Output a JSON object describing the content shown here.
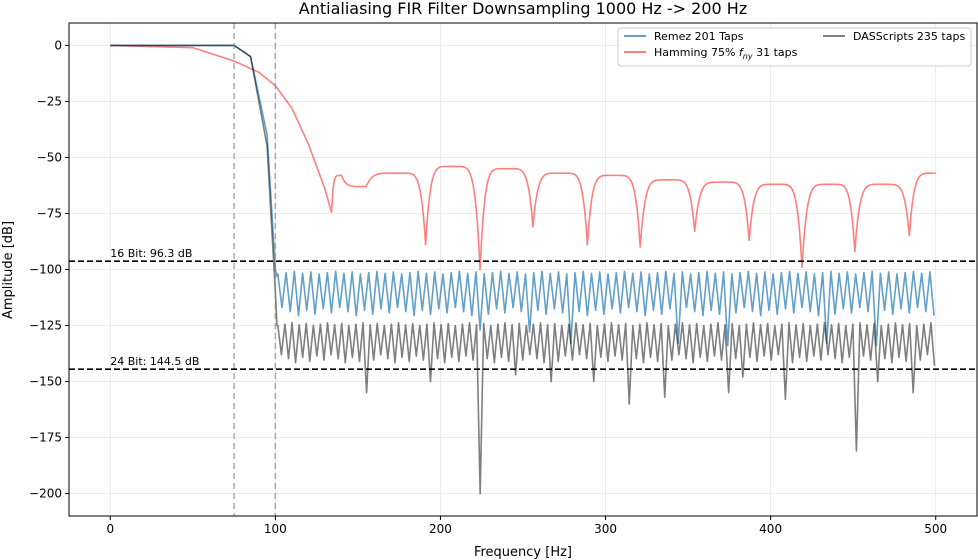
{
  "chart_data": {
    "type": "line",
    "title": "Antialiasing FIR Filter Downsampling 1000 Hz -> 200 Hz",
    "xlabel": "Frequency [Hz]",
    "ylabel": "Amplitude [dB]",
    "xlim": [
      -25,
      525
    ],
    "ylim": [
      -210,
      10
    ],
    "x_ticks": [
      0,
      100,
      200,
      300,
      400,
      500
    ],
    "y_ticks": [
      0,
      -25,
      -50,
      -75,
      -100,
      -125,
      -150,
      -175,
      -200
    ],
    "x_tick_labels": [
      "0",
      "100",
      "200",
      "300",
      "400",
      "500"
    ],
    "y_tick_labels": [
      "0",
      "−25",
      "−50",
      "−75",
      "−100",
      "−125",
      "−150",
      "−175",
      "−200"
    ],
    "grid": true,
    "legend_position": "top-right",
    "series": [
      {
        "name": "Remez 201 Taps",
        "color": "#1f77b4",
        "opacity": 0.7,
        "passband_end_hz": 75,
        "stopband_start_hz": 100,
        "stopband_ceiling_db": -102,
        "stopband_floor_db": -117,
        "ripple_period_hz": 5,
        "key_points": [
          [
            0,
            0
          ],
          [
            75,
            0
          ],
          [
            85,
            -5
          ],
          [
            95,
            -40
          ],
          [
            100,
            -100
          ],
          [
            101,
            -103
          ]
        ],
        "deep_nulls": [
          [
            225,
            -127
          ],
          [
            255,
            -128
          ],
          [
            280,
            -133
          ],
          [
            345,
            -133
          ],
          [
            375,
            -134
          ],
          [
            435,
            -133
          ],
          [
            465,
            -134
          ]
        ]
      },
      {
        "name": "Hamming 75% f_ny 31 taps",
        "label_main": "Hamming 75% ",
        "label_sym": "f",
        "label_sub": "ny",
        "label_tail": " 31 taps",
        "color": "#ff0000",
        "opacity": 0.5,
        "key_points": [
          [
            0,
            0
          ],
          [
            50,
            -1
          ],
          [
            75,
            -7
          ],
          [
            90,
            -12
          ],
          [
            100,
            -18
          ],
          [
            110,
            -28
          ],
          [
            120,
            -44
          ],
          [
            130,
            -64
          ],
          [
            134,
            -74.5
          ]
        ],
        "nulls": [
          [
            134,
            -74.5
          ],
          [
            191,
            -89
          ],
          [
            224,
            -100
          ],
          [
            256,
            -81
          ],
          [
            289,
            -89
          ],
          [
            321,
            -90
          ],
          [
            354,
            -83
          ],
          [
            387,
            -87
          ],
          [
            419,
            -99
          ],
          [
            451,
            -92
          ],
          [
            484,
            -85
          ]
        ],
        "peaks": [
          [
            140,
            -58
          ],
          [
            155,
            -63
          ],
          [
            175,
            -57
          ],
          [
            207,
            -54
          ],
          [
            240,
            -55
          ],
          [
            273,
            -57
          ],
          [
            305,
            -58
          ],
          [
            338,
            -60
          ],
          [
            371,
            -61
          ],
          [
            403,
            -62
          ],
          [
            436,
            -62
          ],
          [
            468,
            -62
          ],
          [
            500,
            -57
          ]
        ]
      },
      {
        "name": "DASScripts 235 taps",
        "color": "#000000",
        "opacity": 0.5,
        "passband_end_hz": 75,
        "stopband_start_hz": 100,
        "stopband_ceiling_db": -125,
        "stopband_floor_db": -138,
        "ripple_period_hz": 4.3,
        "key_points": [
          [
            0,
            0
          ],
          [
            75,
            0
          ],
          [
            85,
            -5
          ],
          [
            95,
            -45
          ],
          [
            100,
            -110
          ],
          [
            101,
            -125
          ]
        ],
        "deep_nulls": [
          [
            155,
            -155
          ],
          [
            196,
            -150
          ],
          [
            223,
            -200
          ],
          [
            244,
            -147
          ],
          [
            265,
            -150
          ],
          [
            295,
            -150
          ],
          [
            315,
            -160
          ],
          [
            336,
            -157
          ],
          [
            373,
            -155
          ],
          [
            385,
            -148
          ],
          [
            410,
            -158
          ],
          [
            452,
            -181
          ],
          [
            466,
            -150
          ],
          [
            485,
            -155
          ],
          [
            500,
            -143
          ]
        ]
      }
    ],
    "reference_lines": [
      {
        "y": -96.3,
        "label": "16 Bit: 96.3 dB",
        "style": "dashed",
        "color": "#000000"
      },
      {
        "y": -144.5,
        "label": "24 Bit: 144.5 dB",
        "style": "dashed",
        "color": "#000000"
      }
    ],
    "vertical_lines": [
      {
        "x": 75,
        "style": "dashed",
        "color": "#888888"
      },
      {
        "x": 100,
        "style": "dashed",
        "color": "#888888"
      }
    ]
  }
}
